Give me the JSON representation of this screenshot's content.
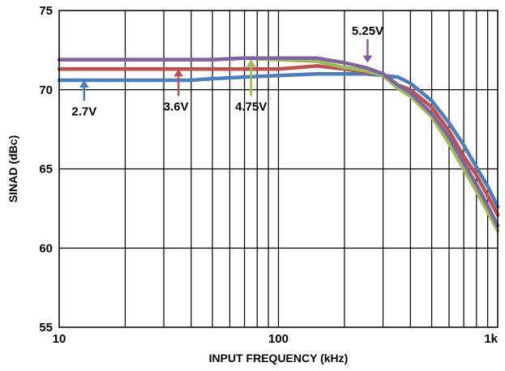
{
  "chart_data": {
    "type": "line",
    "xlabel": "INPUT FREQUENCY (kHz)",
    "ylabel": "SINAD (dBc)",
    "xscale": "log",
    "xlim": [
      10,
      1000
    ],
    "ylim": [
      55,
      75
    ],
    "grid": true,
    "x_ticks": [
      {
        "value": 10,
        "label": "10"
      },
      {
        "value": 100,
        "label": "100"
      },
      {
        "value": 1000,
        "label": "1k"
      }
    ],
    "y_ticks": [
      {
        "value": 55,
        "label": "55"
      },
      {
        "value": 60,
        "label": "60"
      },
      {
        "value": 65,
        "label": "65"
      },
      {
        "value": 70,
        "label": "70"
      },
      {
        "value": 75,
        "label": "75"
      }
    ],
    "series": [
      {
        "name": "2.7V",
        "color": "#4a7ebf",
        "x": [
          10,
          15,
          20,
          30,
          40,
          50,
          70,
          100,
          150,
          200,
          250,
          300,
          350,
          400,
          500,
          600,
          700,
          800,
          900,
          1000
        ],
        "y": [
          70.6,
          70.6,
          70.6,
          70.6,
          70.6,
          70.7,
          70.8,
          70.9,
          71.0,
          71.0,
          71.0,
          70.9,
          70.8,
          70.4,
          69.3,
          67.9,
          66.5,
          65.1,
          63.9,
          62.6
        ]
      },
      {
        "name": "3.6V",
        "color": "#c0504d",
        "x": [
          10,
          15,
          20,
          30,
          40,
          50,
          70,
          100,
          150,
          200,
          250,
          300,
          350,
          400,
          500,
          600,
          700,
          800,
          900,
          1000
        ],
        "y": [
          71.3,
          71.3,
          71.3,
          71.3,
          71.3,
          71.3,
          71.3,
          71.3,
          71.5,
          71.3,
          71.1,
          71.0,
          70.3,
          70.0,
          68.9,
          67.4,
          65.8,
          64.6,
          63.3,
          62.1
        ]
      },
      {
        "name": "4.75V",
        "color": "#9bbb59",
        "x": [
          10,
          15,
          20,
          30,
          40,
          50,
          70,
          100,
          150,
          200,
          250,
          300,
          350,
          400,
          500,
          600,
          700,
          800,
          900,
          1000
        ],
        "y": [
          71.9,
          71.9,
          71.9,
          71.9,
          71.9,
          71.9,
          72.0,
          71.9,
          71.8,
          71.4,
          71.2,
          70.9,
          70.1,
          69.6,
          68.3,
          66.6,
          65.0,
          63.6,
          62.3,
          61.1
        ]
      },
      {
        "name": "5.25V",
        "color": "#8064a2",
        "x": [
          10,
          15,
          20,
          30,
          40,
          50,
          70,
          100,
          150,
          200,
          250,
          300,
          350,
          400,
          500,
          600,
          700,
          800,
          900,
          1000
        ],
        "y": [
          71.9,
          71.9,
          71.9,
          71.9,
          71.9,
          71.9,
          72.0,
          72.0,
          72.0,
          71.7,
          71.4,
          71.0,
          70.3,
          69.8,
          68.5,
          67.0,
          65.4,
          64.0,
          62.7,
          61.4
        ]
      }
    ],
    "annotations": [
      {
        "text": "2.7V",
        "series": "2.7V",
        "arrow_x": 13,
        "arrow_tip_y": 70.6,
        "arrow_tail_y": 69.3
      },
      {
        "text": "3.6V",
        "series": "3.6V",
        "arrow_x": 35,
        "arrow_tip_y": 71.3,
        "arrow_tail_y": 69.6
      },
      {
        "text": "4.75V",
        "series": "4.75V",
        "arrow_x": 75,
        "arrow_tip_y": 71.9,
        "arrow_tail_y": 69.6
      },
      {
        "text": "5.25V",
        "series": "5.25V",
        "arrow_x": 255,
        "arrow_tip_y": 71.7,
        "arrow_tail_y": 73.2
      }
    ]
  }
}
